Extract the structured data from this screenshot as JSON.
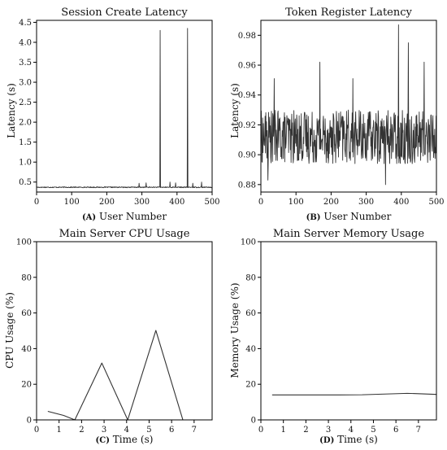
{
  "figure": {
    "background": "#ffffff",
    "line_color": "#333333",
    "axis_color": "#000000"
  },
  "chart_data": [
    {
      "id": "A",
      "type": "line",
      "title": "Session Create Latency",
      "xlabel_tag": "(A)",
      "xlabel": "User Number",
      "ylabel": "Latency (s)",
      "xlim": [
        0,
        500
      ],
      "ylim": [
        0.25,
        4.55
      ],
      "xticks": [
        0,
        100,
        200,
        300,
        400,
        500
      ],
      "yticks": [
        0.5,
        1.0,
        1.5,
        2.0,
        2.5,
        3.0,
        3.5,
        4.0,
        4.5
      ],
      "ytick_labels": [
        "0.5",
        "1.0",
        "1.5",
        "2.0",
        "2.5",
        "3.0",
        "3.5",
        "4.0",
        "4.5"
      ],
      "series": [
        {
          "color": "#333333",
          "base": 0.37,
          "noise": 0.012,
          "n_points": 500,
          "spikes": [
            {
              "x": 292,
              "y": 0.47
            },
            {
              "x": 312,
              "y": 0.48
            },
            {
              "x": 352,
              "y": 4.3
            },
            {
              "x": 380,
              "y": 0.5
            },
            {
              "x": 396,
              "y": 0.48
            },
            {
              "x": 430,
              "y": 4.35
            },
            {
              "x": 445,
              "y": 0.47
            },
            {
              "x": 470,
              "y": 0.5
            }
          ]
        }
      ]
    },
    {
      "id": "B",
      "type": "line",
      "title": "Token Register Latency",
      "xlabel_tag": "(B)",
      "xlabel": "User Number",
      "ylabel": "Latency (s)",
      "xlim": [
        0,
        500
      ],
      "ylim": [
        0.875,
        0.99
      ],
      "xticks": [
        0,
        100,
        200,
        300,
        400,
        500
      ],
      "yticks": [
        0.88,
        0.9,
        0.92,
        0.94,
        0.96,
        0.98
      ],
      "ytick_labels": [
        "0.88",
        "0.90",
        "0.92",
        "0.94",
        "0.96",
        "0.98"
      ],
      "series": [
        {
          "color": "#333333",
          "base": 0.912,
          "noise": 0.018,
          "n_points": 500,
          "spikes": [
            {
              "x": 20,
              "y": 0.883
            },
            {
              "x": 38,
              "y": 0.951
            },
            {
              "x": 168,
              "y": 0.962
            },
            {
              "x": 262,
              "y": 0.951
            },
            {
              "x": 355,
              "y": 0.88
            },
            {
              "x": 392,
              "y": 0.987
            },
            {
              "x": 420,
              "y": 0.975
            },
            {
              "x": 465,
              "y": 0.962
            }
          ]
        }
      ]
    },
    {
      "id": "C",
      "type": "line",
      "title": "Main Server CPU Usage",
      "xlabel_tag": "(C)",
      "xlabel": "Time (s)",
      "ylabel": "CPU Usage (%)",
      "xlim": [
        0,
        7.8
      ],
      "ylim": [
        0,
        100
      ],
      "xticks": [
        0,
        1,
        2,
        3,
        4,
        5,
        6,
        7
      ],
      "yticks": [
        0,
        20,
        40,
        60,
        80,
        100
      ],
      "ytick_labels": [
        "0",
        "20",
        "40",
        "60",
        "80",
        "100"
      ],
      "series": [
        {
          "color": "#333333",
          "x": [
            0.5,
            1.2,
            1.7,
            2.9,
            4.05,
            5.3,
            6.5,
            6.9
          ],
          "y": [
            4.8,
            2.5,
            0,
            31.9,
            0,
            50.2,
            0,
            0
          ]
        }
      ]
    },
    {
      "id": "D",
      "type": "line",
      "title": "Main Server Memory Usage",
      "xlabel_tag": "(D)",
      "xlabel": "Time (s)",
      "ylabel": "Memory Usage (%)",
      "xlim": [
        0,
        7.8
      ],
      "ylim": [
        0,
        100
      ],
      "xticks": [
        0,
        1,
        2,
        3,
        4,
        5,
        6,
        7
      ],
      "yticks": [
        0,
        20,
        40,
        60,
        80,
        100
      ],
      "ytick_labels": [
        "0",
        "20",
        "40",
        "60",
        "80",
        "100"
      ],
      "series": [
        {
          "color": "#333333",
          "x": [
            0.5,
            1.5,
            2.5,
            3.5,
            4.5,
            5.5,
            6.5,
            7.0,
            7.8
          ],
          "y": [
            14.0,
            14.0,
            14.0,
            14.0,
            14.1,
            14.5,
            14.9,
            14.7,
            14.3
          ]
        }
      ]
    }
  ]
}
